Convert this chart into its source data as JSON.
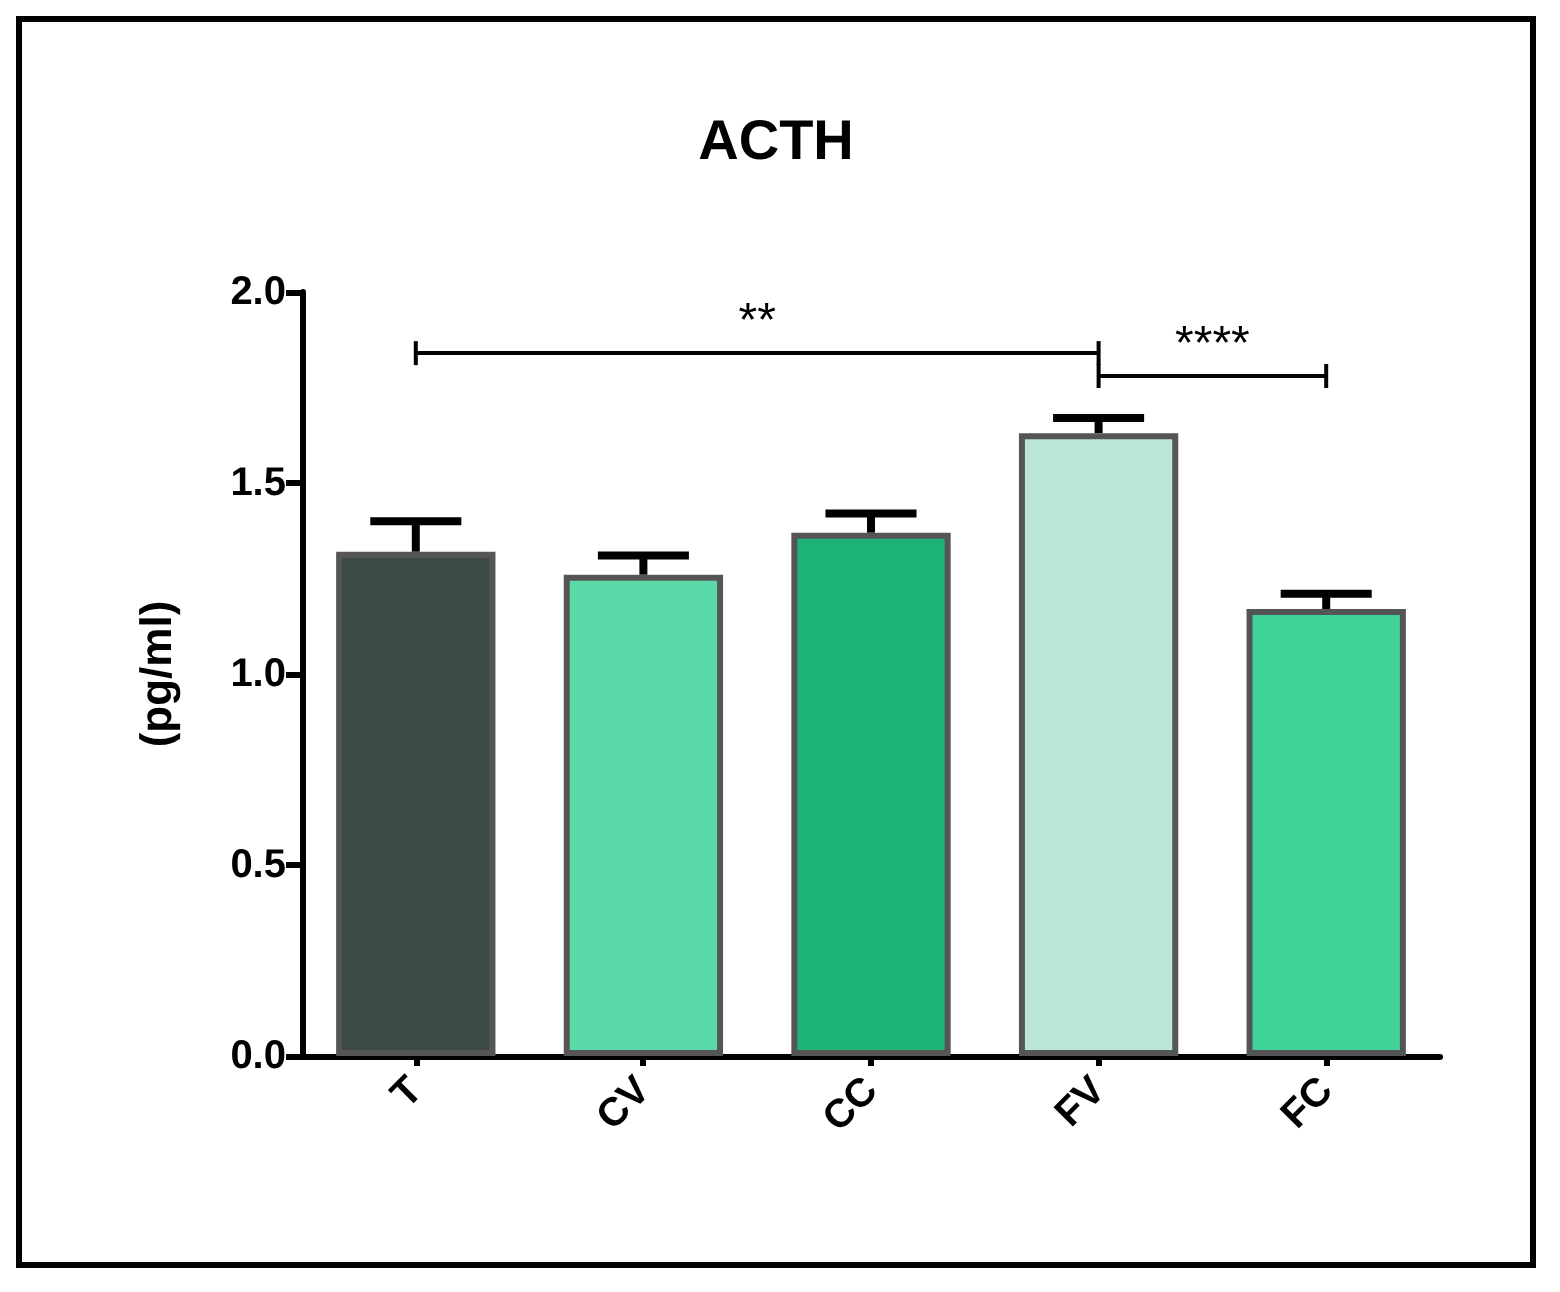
{
  "chart_data": {
    "type": "bar",
    "title": "ACTH",
    "ylabel": "(pg/ml)",
    "categories": [
      "T",
      "CV",
      "CC",
      "FV",
      "FC"
    ],
    "values": [
      1.32,
      1.26,
      1.37,
      1.63,
      1.17
    ],
    "errors": [
      [
        1.32,
        1.4
      ],
      [
        1.26,
        1.31
      ],
      [
        1.37,
        1.42
      ],
      [
        1.63,
        1.67
      ],
      [
        1.17,
        1.21
      ]
    ],
    "colors": [
      "#3c4a43",
      "#5ad9a8",
      "#1db377",
      "#b9e6d6",
      "#3fd39a"
    ],
    "ylim": [
      0,
      2
    ],
    "yticks": [
      {
        "value": 0,
        "label": "0.0"
      },
      {
        "value": 0.5,
        "label": "0.5"
      },
      {
        "value": 1,
        "label": "1.0"
      },
      {
        "value": 1.5,
        "label": "1.5"
      },
      {
        "value": 2,
        "label": "2.0"
      }
    ],
    "grid": false,
    "annotations": [
      "**",
      "****"
    ]
  }
}
